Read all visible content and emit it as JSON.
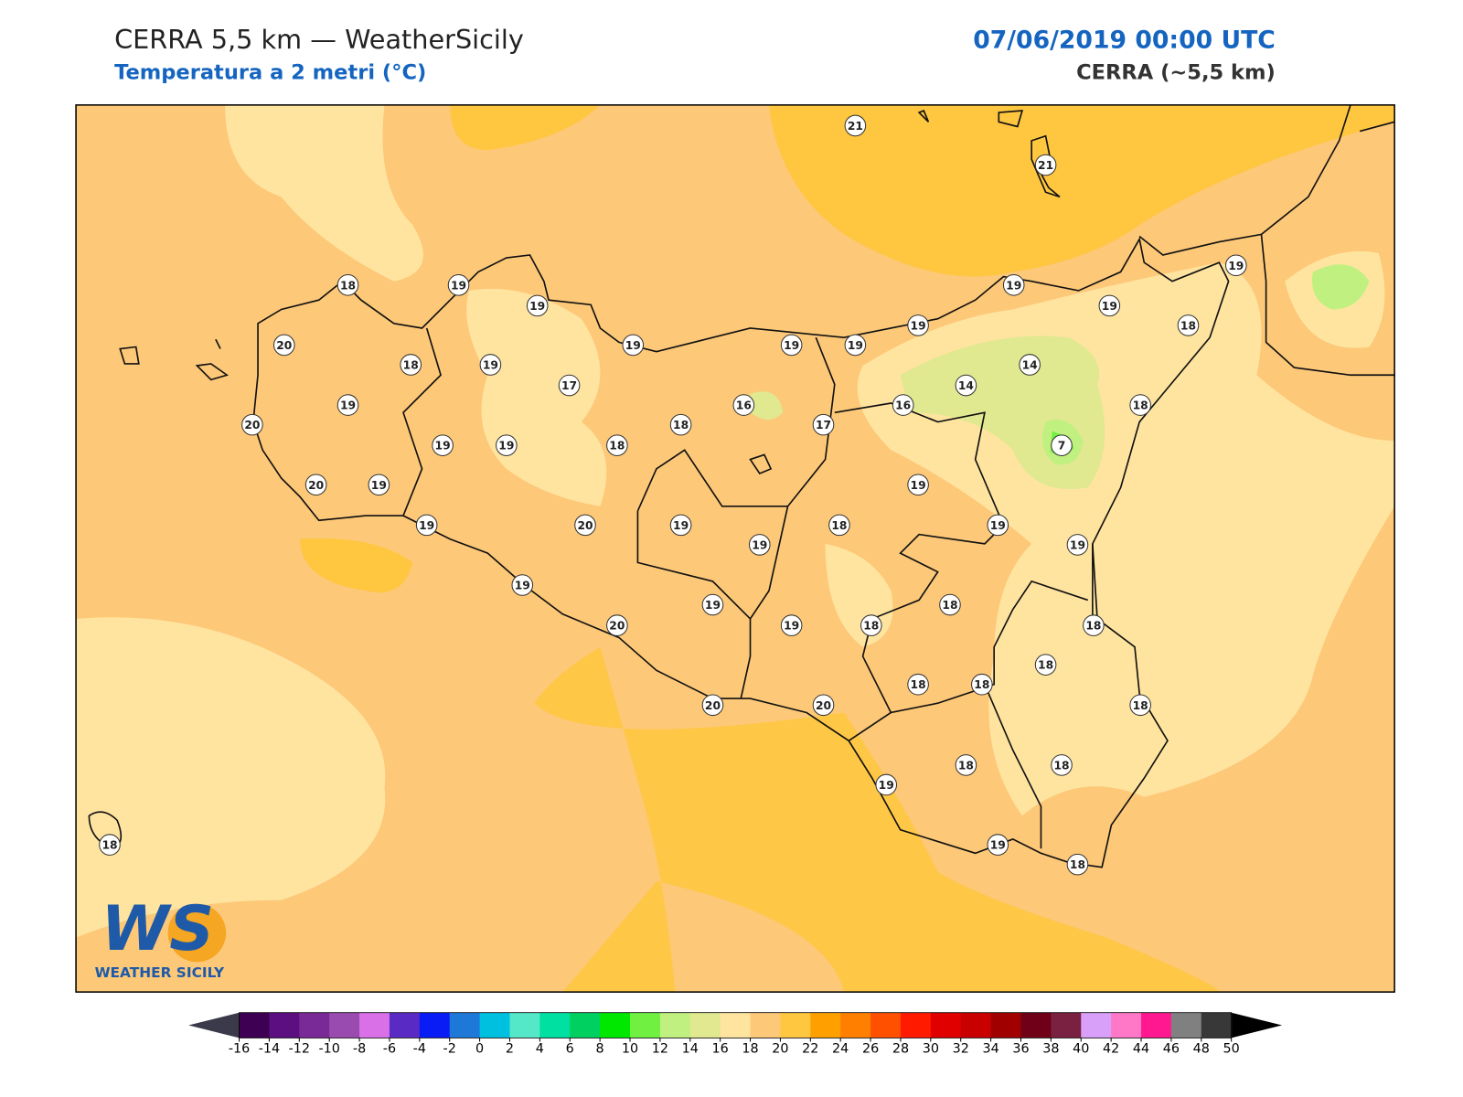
{
  "header": {
    "title": "CERRA 5,5 km — WeatherSicily",
    "subtitle": "Temperatura a 2 metri (°C)",
    "date": "07/06/2019 00:00 UTC",
    "model": "CERRA (~5,5 km)"
  },
  "stations": [
    21,
    21,
    18,
    19,
    19,
    19,
    19,
    19,
    18,
    20,
    18,
    19,
    19,
    19,
    19,
    19,
    14,
    14,
    17,
    19,
    16,
    16,
    18,
    20,
    17,
    18,
    19,
    19,
    18,
    7,
    20,
    19,
    19,
    19,
    20,
    19,
    18,
    19,
    19,
    19,
    19,
    19,
    18,
    20,
    19,
    18,
    18,
    18,
    18,
    18,
    20,
    20,
    18,
    19,
    18,
    18,
    19,
    18,
    18
  ],
  "colorbar": {
    "ticks": [
      -16,
      -14,
      -12,
      -10,
      -8,
      -6,
      -4,
      -2,
      0,
      2,
      4,
      6,
      8,
      10,
      12,
      14,
      16,
      18,
      20,
      22,
      24,
      26,
      28,
      30,
      32,
      34,
      36,
      38,
      40,
      42,
      44,
      46,
      48,
      50
    ],
    "colors": [
      "#3d0052",
      "#5b0f80",
      "#7a2a96",
      "#9a4bb0",
      "#d970e8",
      "#5a2bc4",
      "#0a1cf5",
      "#1e78d8",
      "#00c0e0",
      "#55e8c8",
      "#00e0a0",
      "#00d060",
      "#00e800",
      "#70f040",
      "#c0f080",
      "#e0e890",
      "#ffe4a0",
      "#fdc878",
      "#ffc640",
      "#ffa000",
      "#ff8000",
      "#ff5000",
      "#ff1a00",
      "#e00000",
      "#c80000",
      "#a00000",
      "#700018",
      "#7a2040",
      "#d8a0f8",
      "#ff78c8",
      "#ff1890",
      "#808080",
      "#383838"
    ],
    "under_color": "#3a3a4a",
    "over_color": "#000000"
  },
  "logo": {
    "mark": "WS",
    "name": "WEATHER SICILY"
  }
}
